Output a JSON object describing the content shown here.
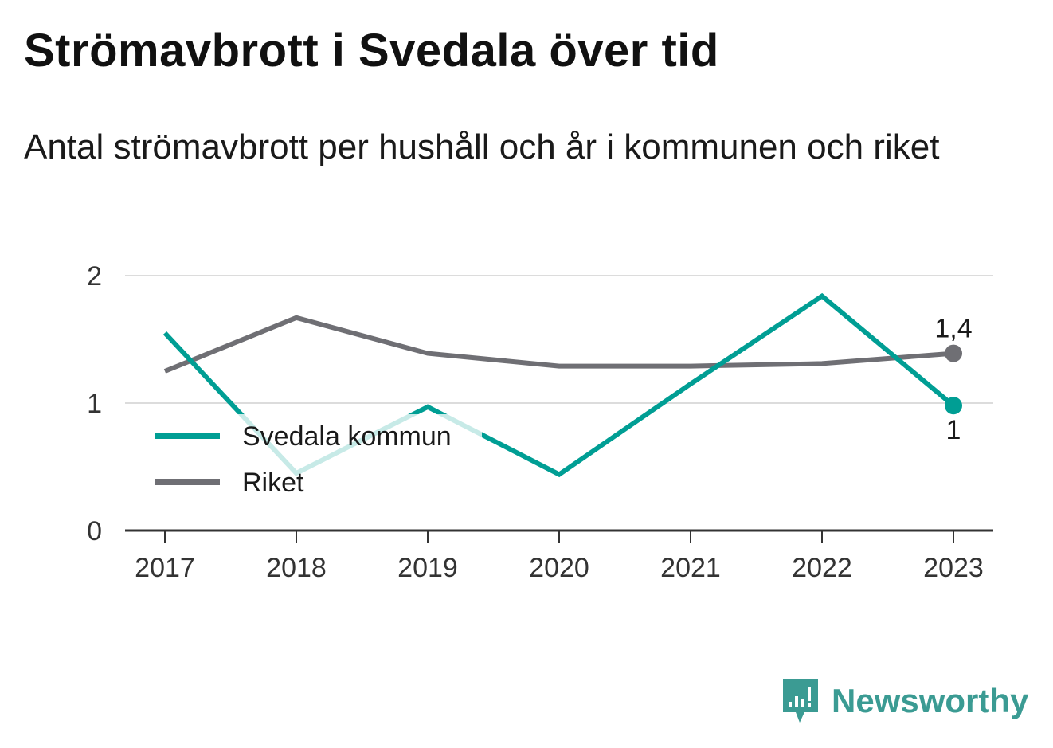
{
  "header": {
    "title": "Strömavbrott i Svedala över tid",
    "subtitle": "Antal strömavbrott per hushåll och år i kommunen och riket"
  },
  "chart_data": {
    "type": "line",
    "x": [
      "2017",
      "2018",
      "2019",
      "2020",
      "2021",
      "2022",
      "2023"
    ],
    "series": [
      {
        "name": "Svedala kommun",
        "color": "#009e94",
        "values": [
          1.55,
          0.45,
          0.97,
          0.44,
          1.15,
          1.84,
          0.98
        ]
      },
      {
        "name": "Riket",
        "color": "#6f6f74",
        "values": [
          1.25,
          1.67,
          1.39,
          1.29,
          1.29,
          1.31,
          1.39
        ]
      }
    ],
    "end_labels": [
      "1",
      "1,4"
    ],
    "ylim": [
      0,
      2
    ],
    "yticks": [
      "0",
      "1",
      "2"
    ],
    "grid": true,
    "legend_position": "left, over plot"
  },
  "branding": {
    "name": "Newsworthy",
    "icon": "bar-chart-speech-bubble-icon",
    "color": "#3b9b93"
  }
}
